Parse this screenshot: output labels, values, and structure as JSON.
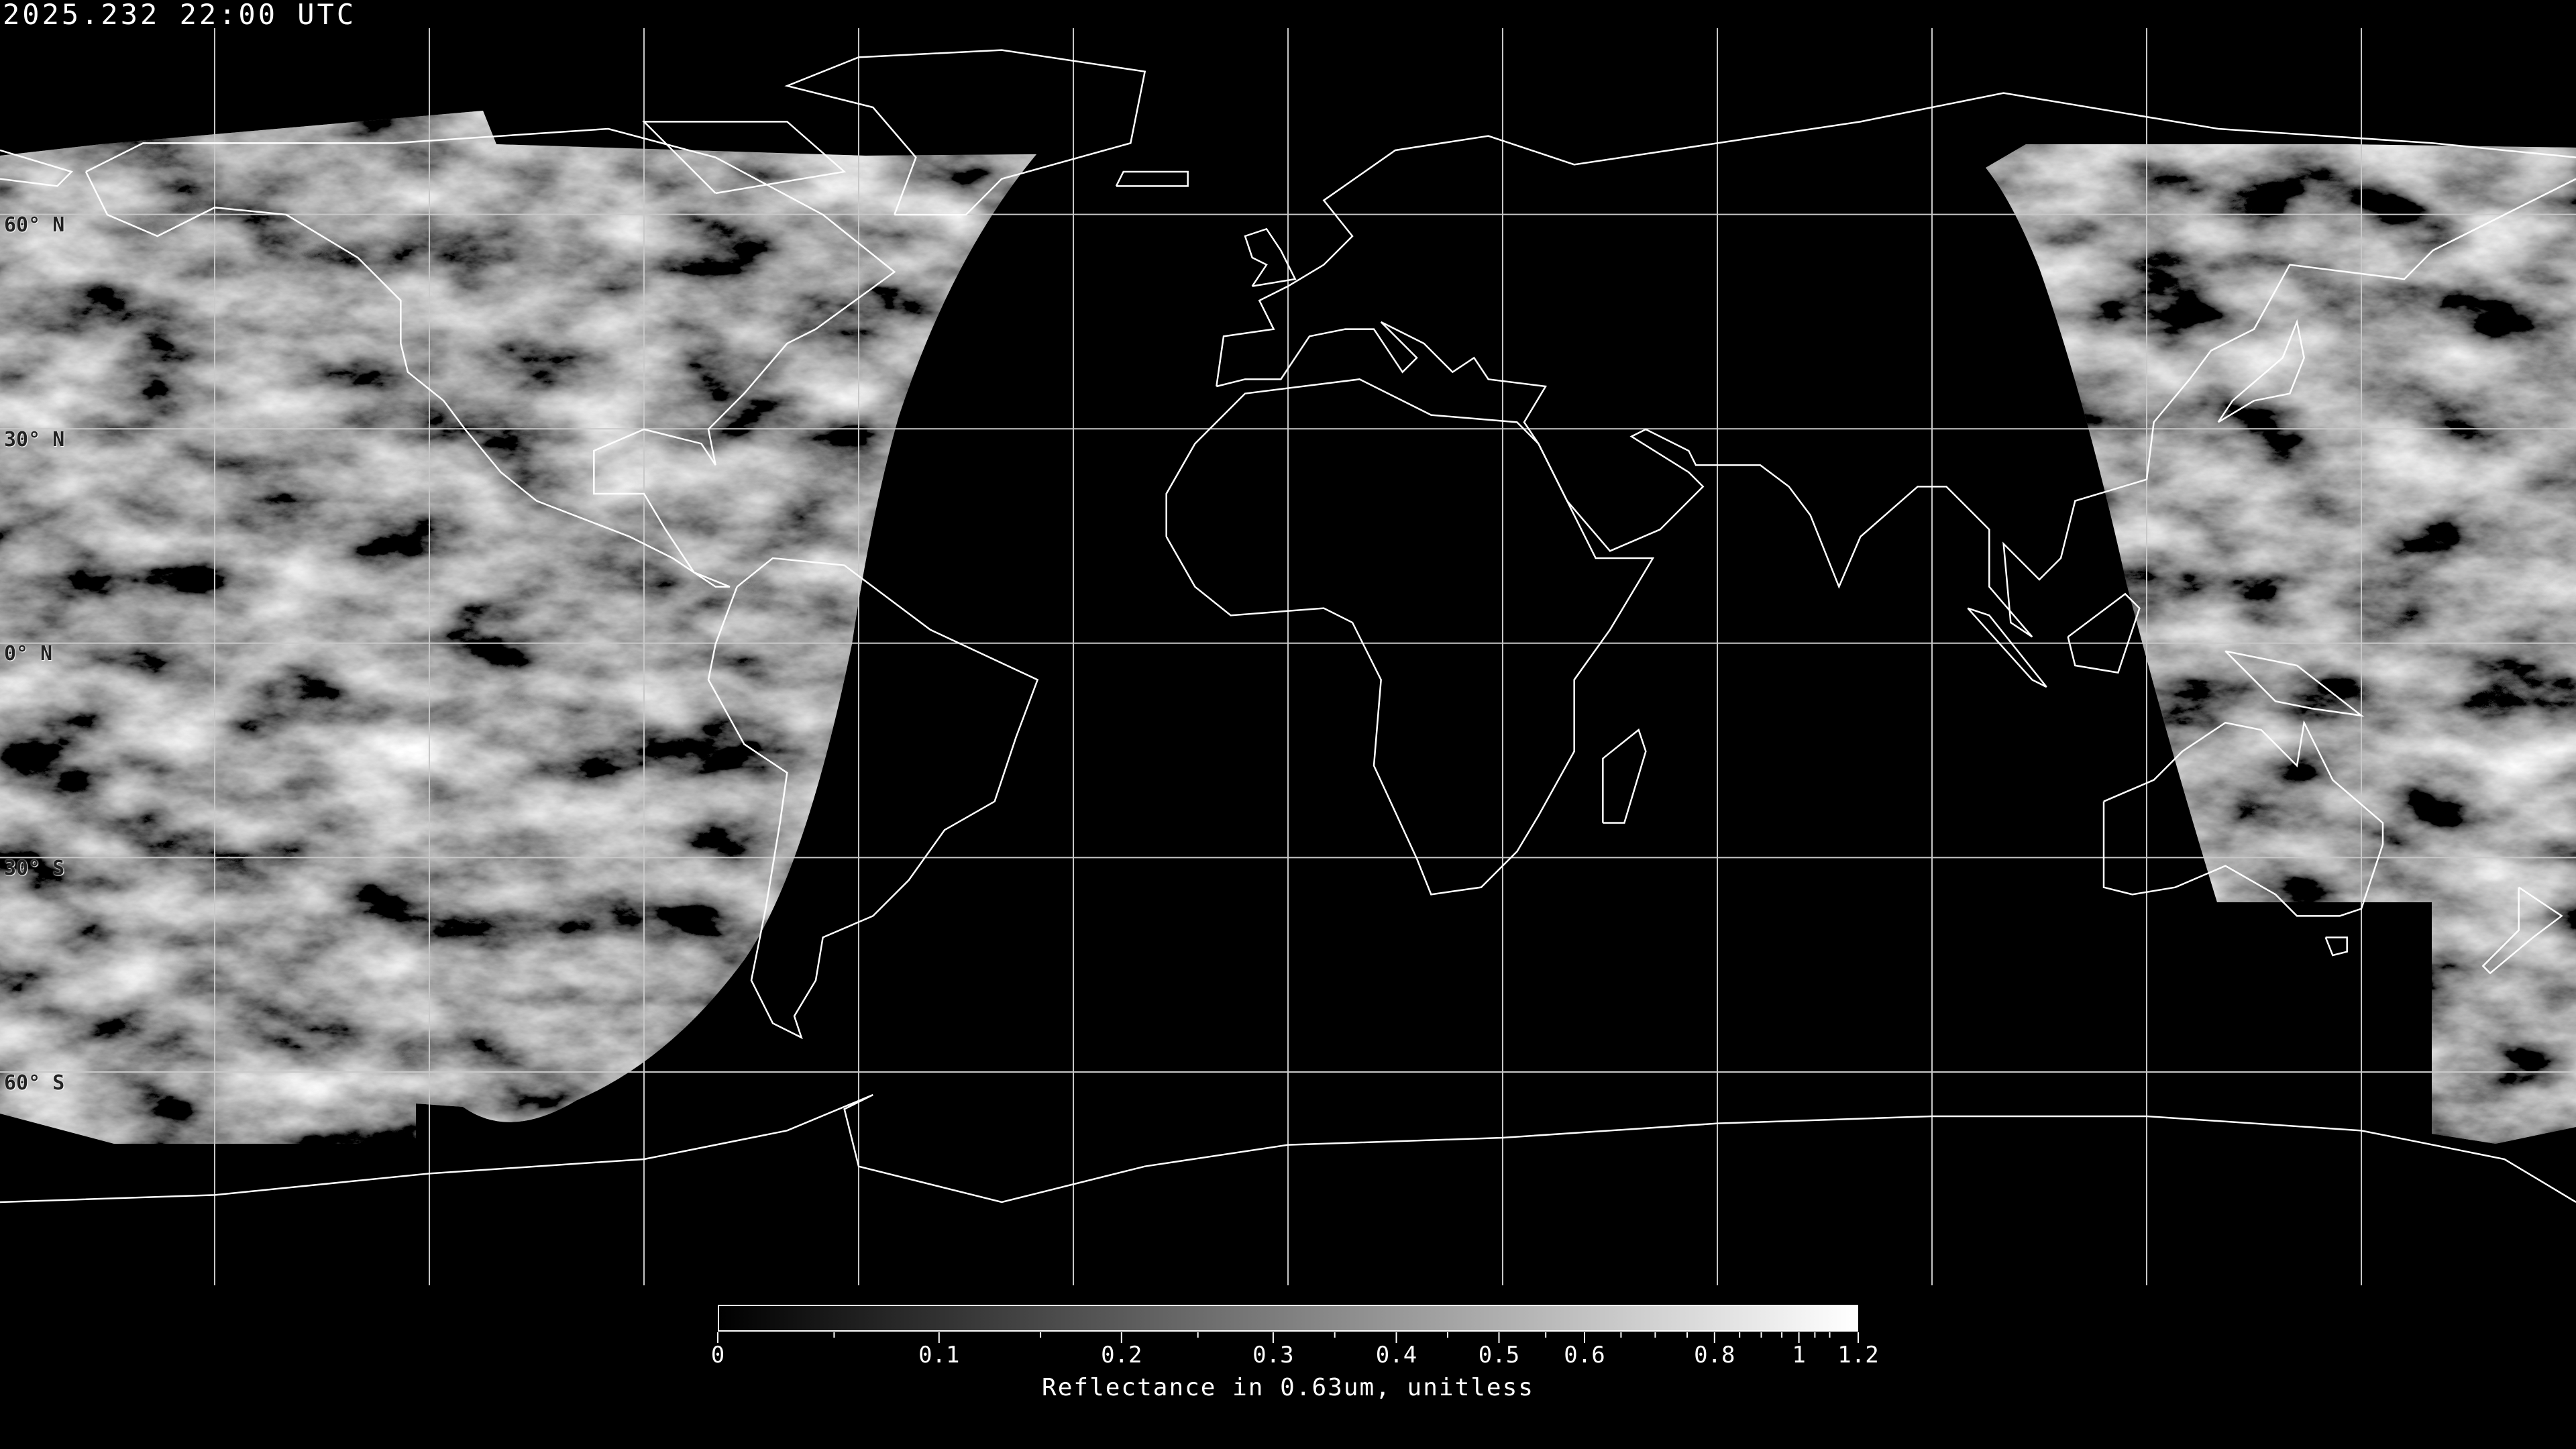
{
  "title": "2025.232 22:00 UTC",
  "projection": "equirectangular",
  "background_color": "#000000",
  "coastline_color": "#ffffff",
  "grid_color": "#c8c8c8",
  "lat_labels": [
    "60° N",
    "30° N",
    "0° N",
    "30° S",
    "60° S"
  ],
  "colorbar": {
    "label": "Reflectance in 0.63um, unitless",
    "colormap": "grayscale",
    "min": 0,
    "max": 1.2,
    "ticks": [
      "0",
      "0.1",
      "0.2",
      "0.3",
      "0.4",
      "0.5",
      "0.6",
      "0.8",
      "1",
      "1.2"
    ]
  }
}
